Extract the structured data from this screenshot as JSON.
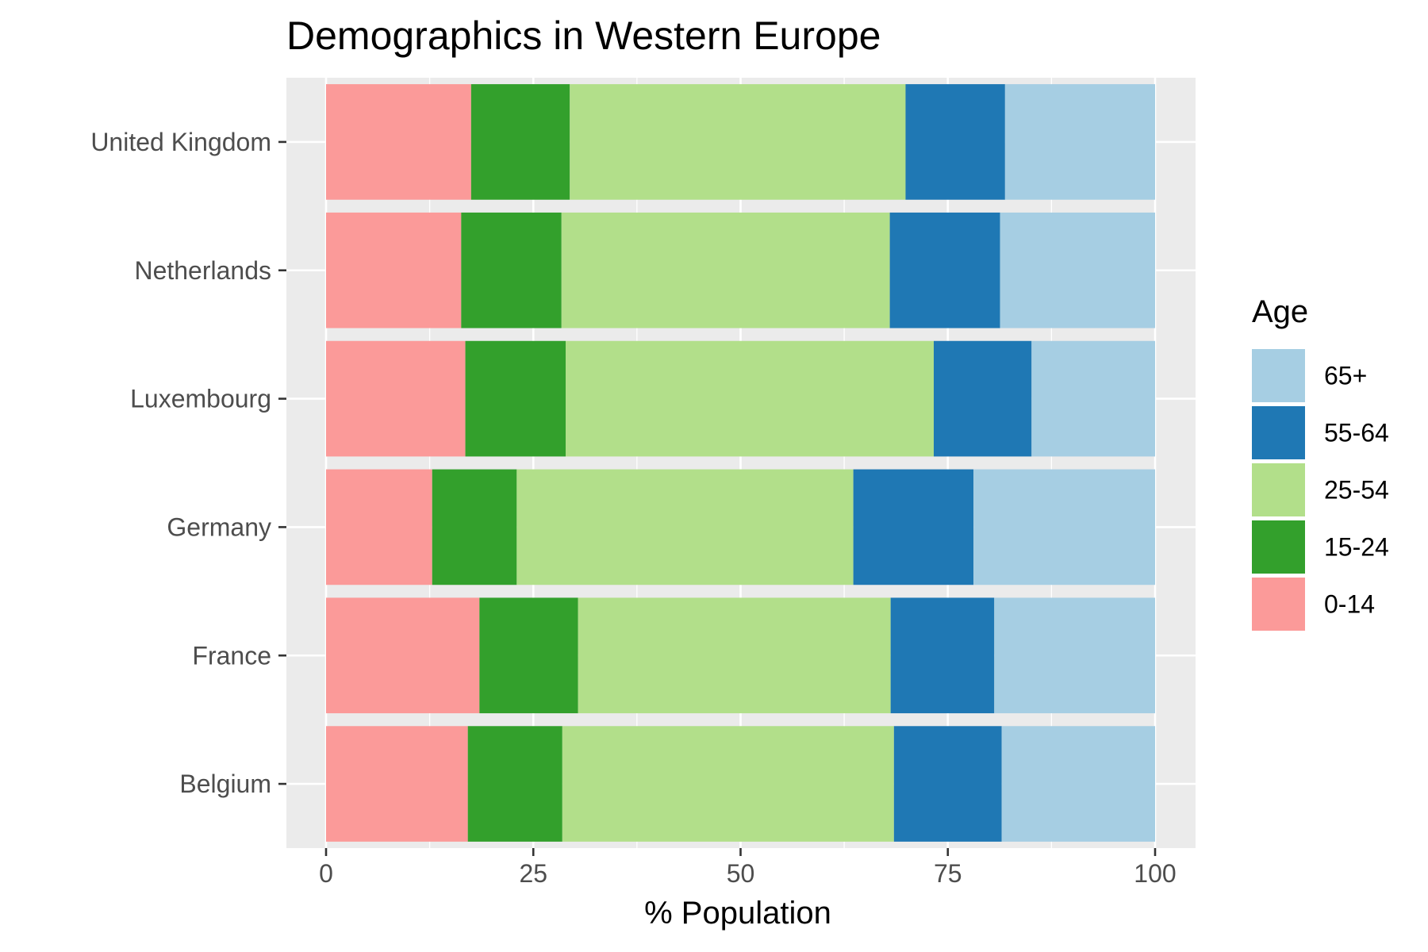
{
  "chart_data": {
    "type": "bar",
    "orientation": "horizontal",
    "stacked": true,
    "title": "Demographics in Western Europe",
    "xlabel": "% Population",
    "ylabel": "",
    "xlim": [
      0,
      100
    ],
    "xticks": [
      0,
      25,
      50,
      75,
      100
    ],
    "grid": true,
    "legend": {
      "title": "Age",
      "position": "right"
    },
    "categories": [
      "Belgium",
      "France",
      "Germany",
      "Luxembourg",
      "Netherlands",
      "United Kingdom"
    ],
    "series": [
      {
        "name": "0-14",
        "color": "#fb9a99",
        "values": [
          17.1,
          18.5,
          12.8,
          16.8,
          16.3,
          17.5
        ]
      },
      {
        "name": "15-24",
        "color": "#33a02c",
        "values": [
          11.4,
          11.9,
          10.2,
          12.1,
          12.1,
          11.9
        ]
      },
      {
        "name": "25-54",
        "color": "#b2df8a",
        "values": [
          40.0,
          37.7,
          40.6,
          44.4,
          39.6,
          40.5
        ]
      },
      {
        "name": "55-64",
        "color": "#1f78b4",
        "values": [
          13.0,
          12.5,
          14.5,
          11.8,
          13.3,
          12.0
        ]
      },
      {
        "name": "65+",
        "color": "#a6cee3",
        "values": [
          18.5,
          19.4,
          21.9,
          14.9,
          18.7,
          18.1
        ]
      }
    ],
    "legend_order": [
      "65+",
      "55-64",
      "25-54",
      "15-24",
      "0-14"
    ]
  }
}
